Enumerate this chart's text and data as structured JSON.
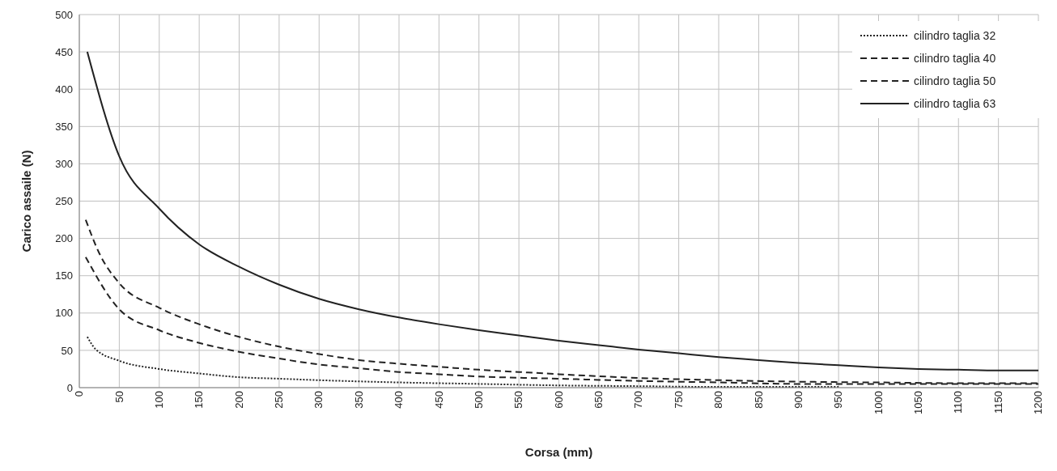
{
  "chart_data": {
    "type": "line",
    "xlabel": "Corsa (mm)",
    "ylabel": "Carico assaile (N)",
    "xlim": [
      0,
      1200
    ],
    "ylim": [
      0,
      500
    ],
    "xticks": [
      0,
      50,
      100,
      150,
      200,
      250,
      300,
      350,
      400,
      450,
      500,
      550,
      600,
      650,
      700,
      750,
      800,
      850,
      900,
      950,
      1000,
      1050,
      1100,
      1150,
      1200
    ],
    "yticks": [
      0,
      50,
      100,
      150,
      200,
      250,
      300,
      350,
      400,
      450,
      500
    ],
    "grid": true,
    "legend": "top right",
    "marker": "none",
    "series": [
      {
        "name": "cilindro taglia 32",
        "color": "#222222",
        "line_style": "dotted",
        "x": [
          10,
          20,
          50,
          100,
          150,
          200,
          250,
          300,
          400,
          500,
          600,
          700,
          800,
          900,
          950
        ],
        "values": [
          68,
          52,
          36,
          25,
          19,
          14,
          12,
          10,
          7,
          5,
          3,
          2,
          1,
          1,
          1
        ]
      },
      {
        "name": "cilindro taglia 40",
        "color": "#222222",
        "line_style": "dashed",
        "x": [
          8,
          50,
          100,
          150,
          200,
          250,
          300,
          350,
          400,
          450,
          500,
          600,
          700,
          800,
          900,
          1000,
          1100,
          1200
        ],
        "values": [
          175,
          105,
          77,
          60,
          48,
          39,
          31,
          26,
          21,
          18,
          15,
          12,
          9,
          7,
          5,
          5,
          5,
          5
        ]
      },
      {
        "name": "cilindro taglia 50",
        "color": "#222222",
        "line_style": "dashed",
        "x": [
          8,
          25,
          50,
          100,
          150,
          200,
          250,
          300,
          350,
          400,
          450,
          500,
          550,
          600,
          700,
          800,
          900,
          1000,
          1100,
          1200
        ],
        "values": [
          225,
          180,
          140,
          107,
          85,
          68,
          55,
          45,
          37,
          32,
          28,
          24,
          21,
          18,
          13,
          10,
          8,
          7,
          6,
          6
        ]
      },
      {
        "name": "cilindro taglia 63",
        "color": "#222222",
        "line_style": "solid",
        "x": [
          10,
          50,
          100,
          150,
          200,
          250,
          300,
          350,
          400,
          450,
          500,
          550,
          600,
          650,
          700,
          750,
          800,
          850,
          900,
          950,
          1000,
          1050,
          1100,
          1150,
          1200
        ],
        "values": [
          450,
          310,
          240,
          192,
          162,
          138,
          119,
          105,
          94,
          85,
          77,
          70,
          63,
          57,
          51,
          46,
          41,
          37,
          33,
          30,
          27,
          25,
          24,
          23,
          23
        ]
      }
    ]
  }
}
